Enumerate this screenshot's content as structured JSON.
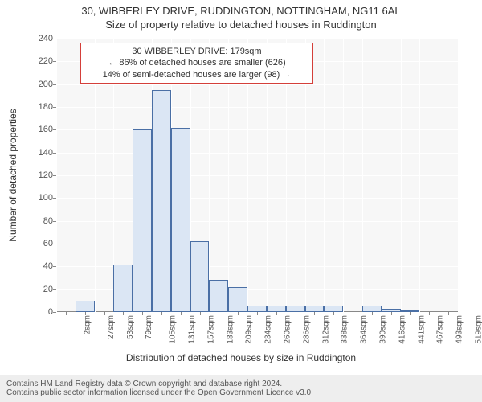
{
  "title_line1": "30, WIBBERLEY DRIVE, RUDDINGTON, NOTTINGHAM, NG11 6AL",
  "title_line2": "Size of property relative to detached houses in Ruddington",
  "y_axis_label": "Number of detached properties",
  "x_axis_label": "Distribution of detached houses by size in Ruddington",
  "footer_line1": "Contains HM Land Registry data © Crown copyright and database right 2024.",
  "footer_line2": "Contains public sector information licensed under the Open Government Licence v3.0.",
  "chart": {
    "type": "histogram",
    "plot_bg": "#f7f7f7",
    "grid_color": "#ffffff",
    "bar_fill": "#dbe6f4",
    "bar_border": "#4a6fa5",
    "ref_color": "#d43f3a",
    "y_min": 0,
    "y_max": 240,
    "y_tick_step": 20,
    "x_tick_labels": [
      "2sqm",
      "27sqm",
      "53sqm",
      "79sqm",
      "105sqm",
      "131sqm",
      "157sqm",
      "183sqm",
      "209sqm",
      "234sqm",
      "260sqm",
      "286sqm",
      "312sqm",
      "338sqm",
      "364sqm",
      "390sqm",
      "416sqm",
      "441sqm",
      "467sqm",
      "493sqm",
      "519sqm"
    ],
    "values": [
      0,
      10,
      0,
      42,
      160,
      195,
      162,
      62,
      28,
      22,
      6,
      6,
      6,
      6,
      6,
      0,
      6,
      3,
      1,
      0,
      0
    ],
    "reference_index": 7
  },
  "annotation": {
    "line1": "30 WIBBERLEY DRIVE: 179sqm",
    "line2": "← 86% of detached houses are smaller (626)",
    "line3": "14% of semi-detached houses are larger (98) →"
  }
}
